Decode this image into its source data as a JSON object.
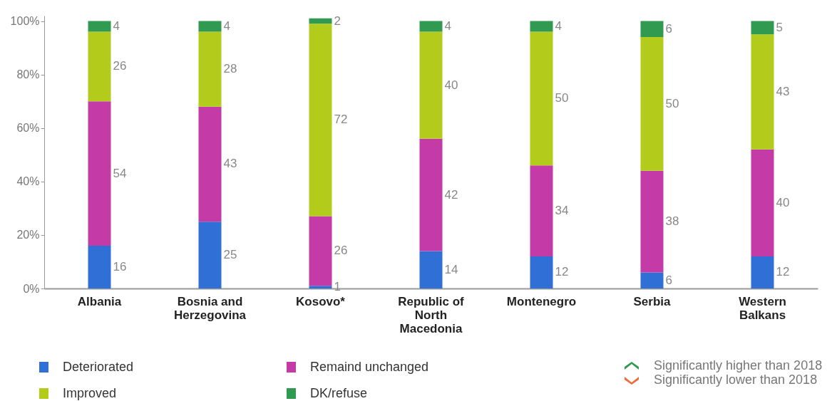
{
  "chart_data": {
    "type": "bar",
    "stacked": true,
    "data_labels": true,
    "legend": "bottom",
    "tick_labels": "xy",
    "categories": [
      "Albania",
      "Bosnia and Herzegovina",
      "Kosovo*",
      "Republic of North Macedonia",
      "Montenegro",
      "Serbia",
      "Western Balkans"
    ],
    "series": [
      {
        "name": "Deteriorated",
        "color": "#2f6fd6",
        "values": [
          16,
          25,
          1,
          14,
          12,
          6,
          12
        ]
      },
      {
        "name": "Remaind unchanged",
        "color": "#c43aa6",
        "values": [
          54,
          43,
          26,
          42,
          34,
          38,
          40
        ]
      },
      {
        "name": "Improved",
        "color": "#b3cc1c",
        "values": [
          26,
          28,
          72,
          40,
          50,
          50,
          43
        ]
      },
      {
        "name": "DK/refuse",
        "color": "#2f9a50",
        "values": [
          4,
          4,
          2,
          4,
          4,
          6,
          5
        ]
      }
    ],
    "ylim": [
      0,
      102
    ],
    "yticks": [
      {
        "value": 0,
        "label": "0%"
      },
      {
        "value": 20,
        "label": "20%"
      },
      {
        "value": 40,
        "label": "40%"
      },
      {
        "value": 60,
        "label": "60%"
      },
      {
        "value": 80,
        "label": "80%"
      },
      {
        "value": 100,
        "label": "100%"
      }
    ],
    "annotations": [
      "Significantly higher than 2018",
      "Significantly lower than 2018"
    ]
  }
}
